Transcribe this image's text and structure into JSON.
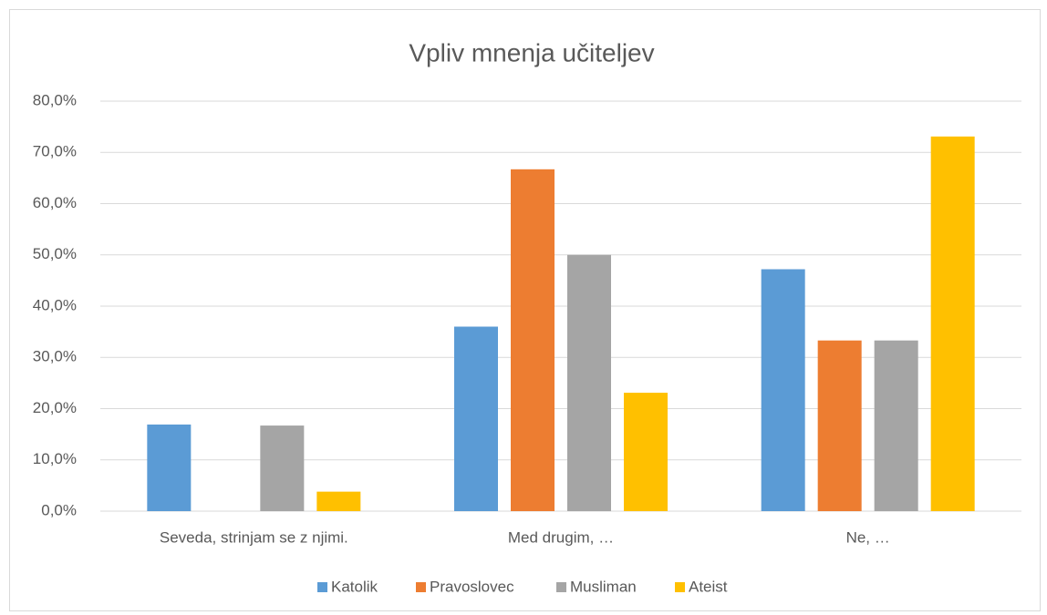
{
  "chart_data": {
    "type": "bar",
    "title": "Vpliv mnenja učiteljev",
    "categories": [
      "Seveda, strinjam se z njimi.",
      "Med drugim, …",
      "Ne, …"
    ],
    "series": [
      {
        "name": "Katolik",
        "color": "#5b9bd5",
        "values": [
          16.9,
          36.0,
          47.2
        ]
      },
      {
        "name": "Pravoslovec",
        "color": "#ed7d31",
        "values": [
          0,
          66.7,
          33.3
        ]
      },
      {
        "name": "Musliman",
        "color": "#a5a5a5",
        "values": [
          16.7,
          50.0,
          33.3
        ]
      },
      {
        "name": "Ateist",
        "color": "#ffc000",
        "values": [
          3.8,
          23.1,
          73.1
        ]
      }
    ],
    "ylim": [
      0,
      80
    ],
    "yticks": [
      {
        "value": 0,
        "label": "0,0%"
      },
      {
        "value": 10,
        "label": "10,0%"
      },
      {
        "value": 20,
        "label": "20,0%"
      },
      {
        "value": 30,
        "label": "30,0%"
      },
      {
        "value": 40,
        "label": "40,0%"
      },
      {
        "value": 50,
        "label": "50,0%"
      },
      {
        "value": 60,
        "label": "60,0%"
      },
      {
        "value": 70,
        "label": "70,0%"
      },
      {
        "value": 80,
        "label": "80,0%"
      }
    ],
    "grid": true,
    "legend": "bottom"
  }
}
